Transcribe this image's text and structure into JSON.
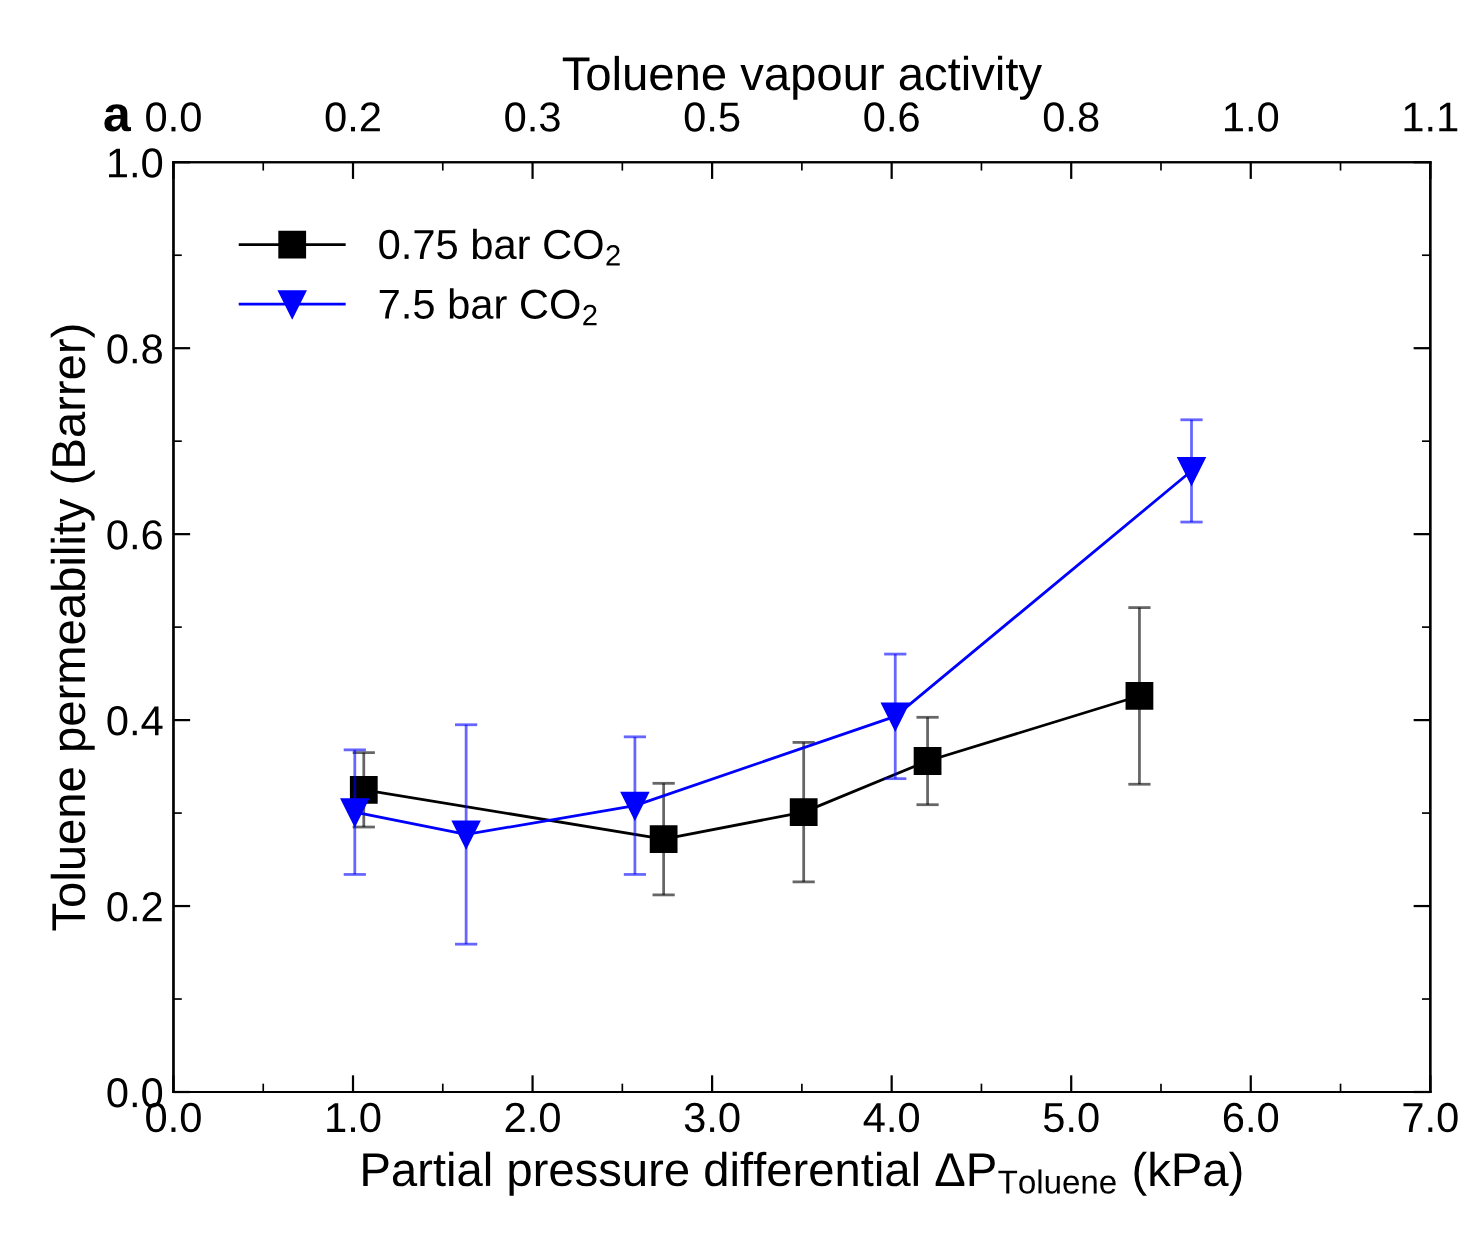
{
  "chart_data": {
    "type": "line",
    "xlabel": "Partial pressure differential ΔP$_{Toluene}$ (kPa)",
    "ylabel": "Toluene permeability (Barrer)",
    "x2label": "Toluene vapour activity",
    "annotations": [
      "a"
    ],
    "xlim": [
      0,
      7
    ],
    "xticks": [
      {
        "value": 0,
        "label": "0.0"
      },
      {
        "value": 1,
        "label": "1.0"
      },
      {
        "value": 2,
        "label": "2.0"
      },
      {
        "value": 3,
        "label": "3.0"
      },
      {
        "value": 4,
        "label": "4.0"
      },
      {
        "value": 5,
        "label": "5.0"
      },
      {
        "value": 6,
        "label": "6.0"
      },
      {
        "value": 7,
        "label": "7.0"
      }
    ],
    "x2lim": [
      0,
      1.12
    ],
    "x2ticks": [
      {
        "value": 0,
        "label": "0.0"
      },
      {
        "value": 0.16,
        "label": "0.2"
      },
      {
        "value": 0.32,
        "label": "0.3"
      },
      {
        "value": 0.48,
        "label": "0.5"
      },
      {
        "value": 0.64,
        "label": "0.6"
      },
      {
        "value": 0.8,
        "label": "0.8"
      },
      {
        "value": 0.96,
        "label": "1.0"
      },
      {
        "value": 1.12,
        "label": "1.1"
      }
    ],
    "ylim": [
      0,
      1.0
    ],
    "yticks": [
      {
        "value": 0,
        "label": "0.0"
      },
      0.2,
      0.4,
      0.6,
      0.8,
      {
        "value": 1.0,
        "label": "1.0"
      }
    ],
    "grid": false,
    "legend": "top left",
    "line_style": "solid",
    "series": [
      {
        "name": "0.75 bar CO$_{2}$",
        "color": "#000000",
        "marker": "square",
        "x": [
          1.06,
          2.73,
          3.51,
          4.2,
          5.38
        ],
        "values": [
          0.325,
          0.272,
          0.301,
          0.356,
          0.426
        ],
        "errors": [
          0.04,
          0.06,
          0.075,
          0.047,
          0.095
        ]
      },
      {
        "name": "7.5 bar CO$_{2}$",
        "color": "#0000ff",
        "marker": "triangle",
        "x": [
          1.01,
          1.63,
          2.57,
          4.02,
          5.67
        ],
        "values": [
          0.301,
          0.277,
          0.308,
          0.404,
          0.668
        ],
        "errors": [
          0.067,
          0.118,
          0.074,
          0.067,
          0.055
        ]
      }
    ]
  }
}
